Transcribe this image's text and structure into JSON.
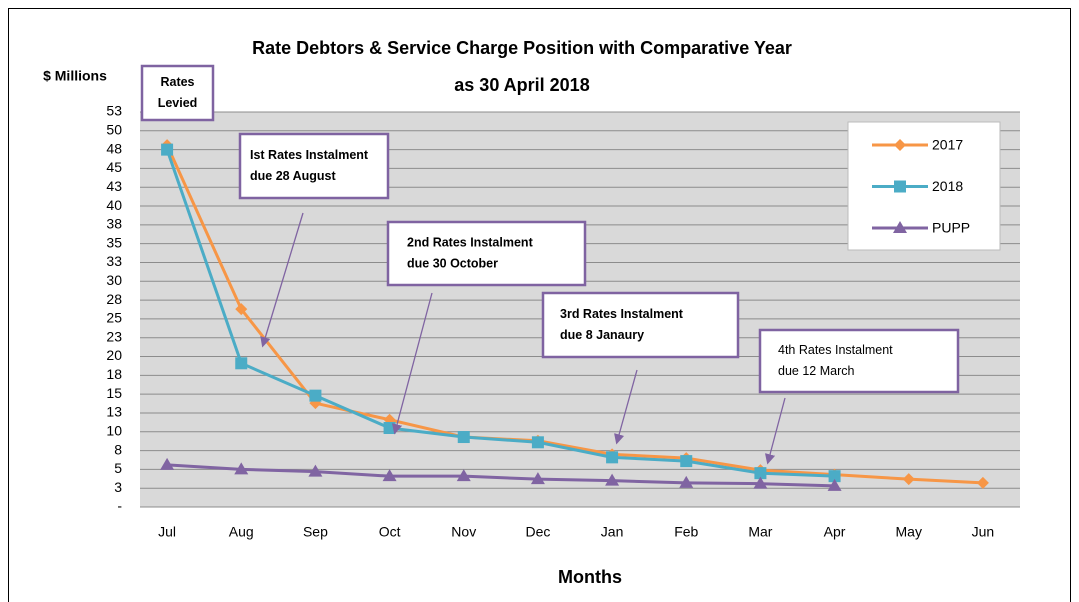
{
  "chart_data": {
    "type": "line",
    "title": [
      "Rate Debtors & Service Charge Position with Comparative Year",
      "as 30 April 2018"
    ],
    "y_axis_label": "$ Millions",
    "x_axis_label": "Months",
    "categories": [
      "Jul",
      "Aug",
      "Sep",
      "Oct",
      "Nov",
      "Dec",
      "Jan",
      "Feb",
      "Mar",
      "Apr",
      "May",
      "Jun"
    ],
    "series": [
      {
        "name": "2017",
        "color": "#f79646",
        "marker": "diamond",
        "values": [
          48.1,
          26.3,
          13.8,
          11.6,
          9.3,
          8.8,
          7.0,
          6.5,
          4.9,
          4.3,
          3.7,
          3.2
        ]
      },
      {
        "name": "2018",
        "color": "#4bacc6",
        "marker": "square",
        "values": [
          47.5,
          19.1,
          14.8,
          10.5,
          9.3,
          8.6,
          6.6,
          6.1,
          4.5,
          4.1,
          null,
          null
        ]
      },
      {
        "name": "PUPP",
        "color": "#8064a2",
        "marker": "triangle",
        "values": [
          5.6,
          5.0,
          4.7,
          4.1,
          4.1,
          3.7,
          3.5,
          3.2,
          3.1,
          2.8,
          null,
          null
        ]
      }
    ],
    "ylim": [
      0,
      52.5
    ],
    "yticks": [
      {
        "value": 0,
        "label": "-"
      },
      {
        "value": 2.5,
        "label": "3"
      },
      5,
      {
        "value": 7.5,
        "label": "8"
      },
      10,
      {
        "value": 12.5,
        "label": "13"
      },
      15,
      {
        "value": 17.5,
        "label": "18"
      },
      20,
      {
        "value": 22.5,
        "label": "23"
      },
      25,
      {
        "value": 27.5,
        "label": "28"
      },
      30,
      {
        "value": 32.5,
        "label": "33"
      },
      35,
      {
        "value": 37.5,
        "label": "38"
      },
      40,
      {
        "value": 42.5,
        "label": "43"
      },
      45,
      {
        "value": 47.5,
        "label": "48"
      },
      50,
      {
        "value": 52.5,
        "label": "53"
      }
    ],
    "grid": true,
    "legend": "top-right",
    "annotations": [
      {
        "text": [
          "Rates",
          "Levied"
        ]
      },
      {
        "text": [
          "Ist Rates Instalment",
          "due 28 August"
        ]
      },
      {
        "text": [
          "2nd Rates Instalment",
          "due 30 October"
        ]
      },
      {
        "text": [
          "3rd Rates Instalment",
          "due 8 Janaury"
        ]
      },
      {
        "text": [
          "4th Rates Instalment",
          "due 12 March"
        ]
      }
    ]
  }
}
